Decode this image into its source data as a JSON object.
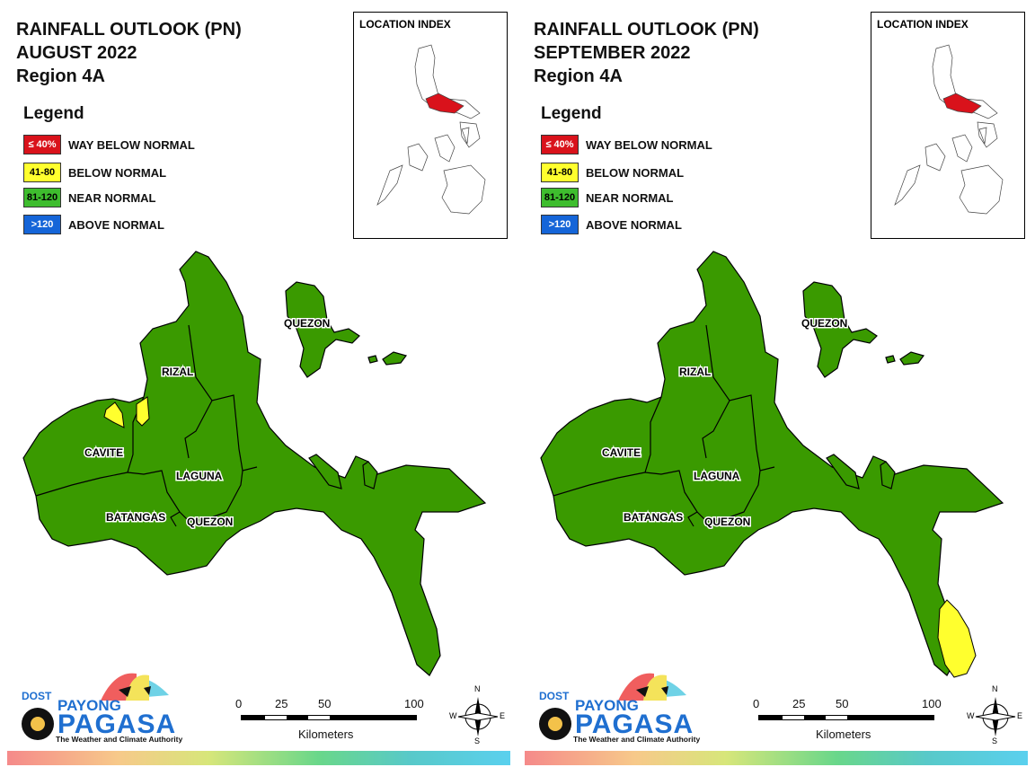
{
  "panels": [
    {
      "title": {
        "line1": "RAINFALL OUTLOOK (PN)",
        "line2": "AUGUST 2022",
        "line3": "Region 4A"
      },
      "below_normal_areas": [
        "northern coast near Cavite/Rizal boundary"
      ]
    },
    {
      "title": {
        "line1": "RAINFALL OUTLOOK (PN)",
        "line2": "SEPTEMBER 2022",
        "line3": "Region 4A"
      },
      "below_normal_areas": [
        "southeastern tip of Quezon"
      ]
    }
  ],
  "legend": {
    "title": "Legend",
    "items": [
      {
        "code": "≤ 40%",
        "label": "WAY BELOW NORMAL",
        "color": "#d9121b",
        "text_color": "#ffffff"
      },
      {
        "code": "41-80",
        "label": "BELOW NORMAL",
        "color": "#ffff2e",
        "text_color": "#000000"
      },
      {
        "code": "81-120",
        "label": "NEAR NORMAL",
        "color": "#3ebd2e",
        "text_color": "#000000"
      },
      {
        "code": ">120",
        "label": "ABOVE NORMAL",
        "color": "#1565d8",
        "text_color": "#ffffff"
      }
    ]
  },
  "location_index": {
    "label": "LOCATION INDEX",
    "highlight_color": "#d9121b"
  },
  "map_labels": {
    "quezon_north": "QUEZON",
    "rizal": "RIZAL",
    "cavite": "CAVITE",
    "laguna": "LAGUNA",
    "batangas": "BATANGAS",
    "quezon_south": "QUEZON"
  },
  "colors": {
    "near_normal_fill": "#3a9a00",
    "below_normal_fill": "#ffff2e",
    "border": "#000000"
  },
  "logo": {
    "dost": "DOST",
    "payong": "PAYONG",
    "pagasa": "PAGASA",
    "tagline": "The Weather and Climate Authority"
  },
  "scale": {
    "ticks": [
      "0",
      "25",
      "50",
      "100"
    ],
    "units": "Kilometers"
  },
  "compass": {
    "n": "N",
    "s": "S",
    "e": "E",
    "w": "W"
  }
}
